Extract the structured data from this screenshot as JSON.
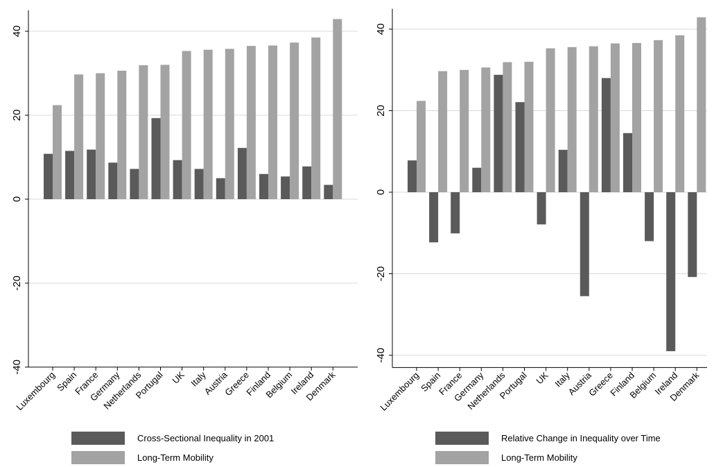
{
  "colors": {
    "dark": "#5a5a5a",
    "light": "#a3a3a3",
    "grid": "#d9d9d9",
    "axis": "#000000"
  },
  "chart_data": [
    {
      "type": "bar",
      "categories": [
        "Luxembourg",
        "Spain",
        "France",
        "Germany",
        "Netherlands",
        "Portugal",
        "UK",
        "Italy",
        "Austria",
        "Greece",
        "Finland",
        "Belgium",
        "Ireland",
        "Denmark"
      ],
      "series": [
        {
          "name": "Cross-Sectional Inequality in 2001",
          "values": [
            10.8,
            11.5,
            11.8,
            8.7,
            7.2,
            19.3,
            9.3,
            7.2,
            5.0,
            12.2,
            6.0,
            5.4,
            7.8,
            3.4
          ]
        },
        {
          "name": "Long-Term Mobility",
          "values": [
            22.4,
            29.7,
            30.0,
            30.6,
            31.9,
            32.0,
            35.3,
            35.6,
            35.8,
            36.5,
            36.6,
            37.3,
            38.5,
            42.9
          ]
        }
      ],
      "yticks": [
        "-40",
        "-20",
        "0",
        "20",
        "40"
      ],
      "ylim": [
        -40,
        45
      ],
      "grid": true,
      "legend_position": "bottom"
    },
    {
      "type": "bar",
      "categories": [
        "Luxembourg",
        "Spain",
        "France",
        "Germany",
        "Netherlands",
        "Portugal",
        "UK",
        "Italy",
        "Austria",
        "Greece",
        "Finland",
        "Belgium",
        "Ireland",
        "Denmark"
      ],
      "series": [
        {
          "name": "Relative Change in Inequality over Time",
          "values": [
            7.8,
            -12.3,
            -10.1,
            6.0,
            28.8,
            22.1,
            -7.9,
            10.4,
            -25.5,
            28.0,
            14.5,
            -12.0,
            -39.0,
            -20.8
          ]
        },
        {
          "name": "Long-Term Mobility",
          "values": [
            22.4,
            29.7,
            30.0,
            30.6,
            31.9,
            32.0,
            35.3,
            35.6,
            35.8,
            36.5,
            36.6,
            37.3,
            38.5,
            42.9
          ]
        }
      ],
      "yticks": [
        "-40",
        "-20",
        "0",
        "20",
        "40"
      ],
      "ylim": [
        -43,
        45
      ],
      "grid": true,
      "legend_position": "bottom"
    }
  ]
}
